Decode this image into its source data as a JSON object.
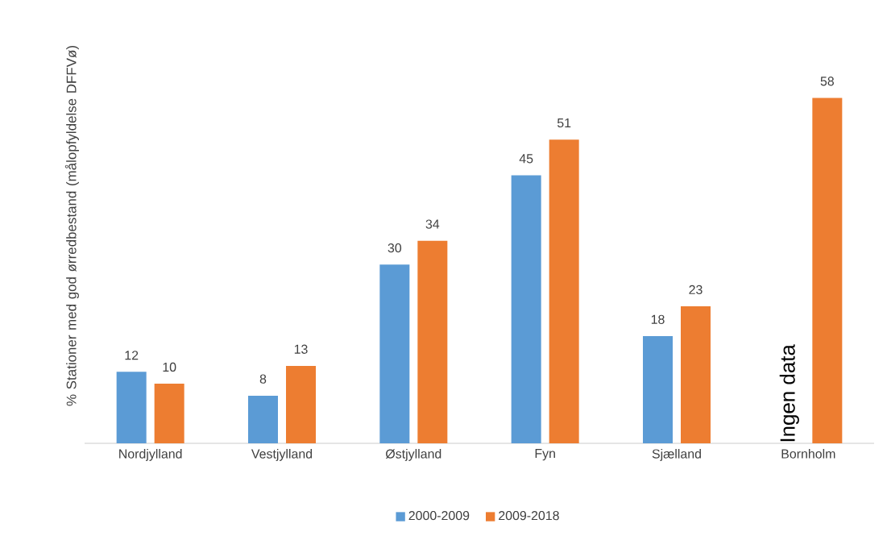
{
  "chart_data": {
    "type": "bar",
    "ylabel": "% Stationer med god ørredbestand (målopfyldelse DFFVø)",
    "categories": [
      "Nordjylland",
      "Vestjylland",
      "Østjylland",
      "Fyn",
      "Sjælland",
      "Bornholm"
    ],
    "series": [
      {
        "name": "2000-2009",
        "color": "#5b9bd5",
        "values": [
          12,
          8,
          30,
          45,
          18,
          null
        ]
      },
      {
        "name": "2009-2018",
        "color": "#ed7d31",
        "values": [
          10,
          13,
          34,
          51,
          23,
          58
        ]
      }
    ],
    "data_labels": true,
    "legend": "bottom",
    "annotations": [
      {
        "text": "Ingen data",
        "x": "Bornholm",
        "y": 0
      }
    ]
  }
}
